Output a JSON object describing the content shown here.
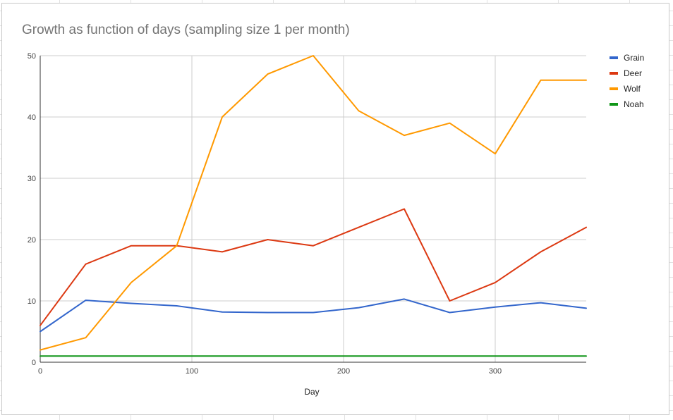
{
  "chart_data": {
    "type": "line",
    "title": "Growth as function of days (sampling size 1 per month)",
    "xlabel": "Day",
    "ylabel": "",
    "xlim": [
      0,
      360
    ],
    "ylim": [
      0,
      50
    ],
    "x_ticks": [
      0,
      100,
      200,
      300
    ],
    "y_ticks": [
      0,
      10,
      20,
      30,
      40,
      50
    ],
    "grid": true,
    "legend_position": "right",
    "x": [
      0,
      30,
      60,
      90,
      120,
      150,
      180,
      210,
      240,
      270,
      300,
      330,
      360
    ],
    "series": [
      {
        "name": "Grain",
        "color": "#3366cc",
        "values": [
          5.0,
          10.1,
          9.6,
          9.2,
          8.2,
          8.1,
          8.1,
          8.9,
          10.3,
          8.1,
          9.0,
          9.7,
          8.8
        ]
      },
      {
        "name": "Deer",
        "color": "#dc3912",
        "values": [
          6,
          16,
          19,
          19,
          18,
          20,
          19,
          22,
          25,
          10,
          13,
          18,
          22
        ]
      },
      {
        "name": "Wolf",
        "color": "#ff9900",
        "values": [
          2,
          4,
          13,
          19,
          40,
          47,
          50,
          41,
          37,
          39,
          34,
          46,
          46
        ]
      },
      {
        "name": "Noah",
        "color": "#109618",
        "values": [
          1,
          1,
          1,
          1,
          1,
          1,
          1,
          1,
          1,
          1,
          1,
          1,
          1
        ]
      }
    ]
  }
}
